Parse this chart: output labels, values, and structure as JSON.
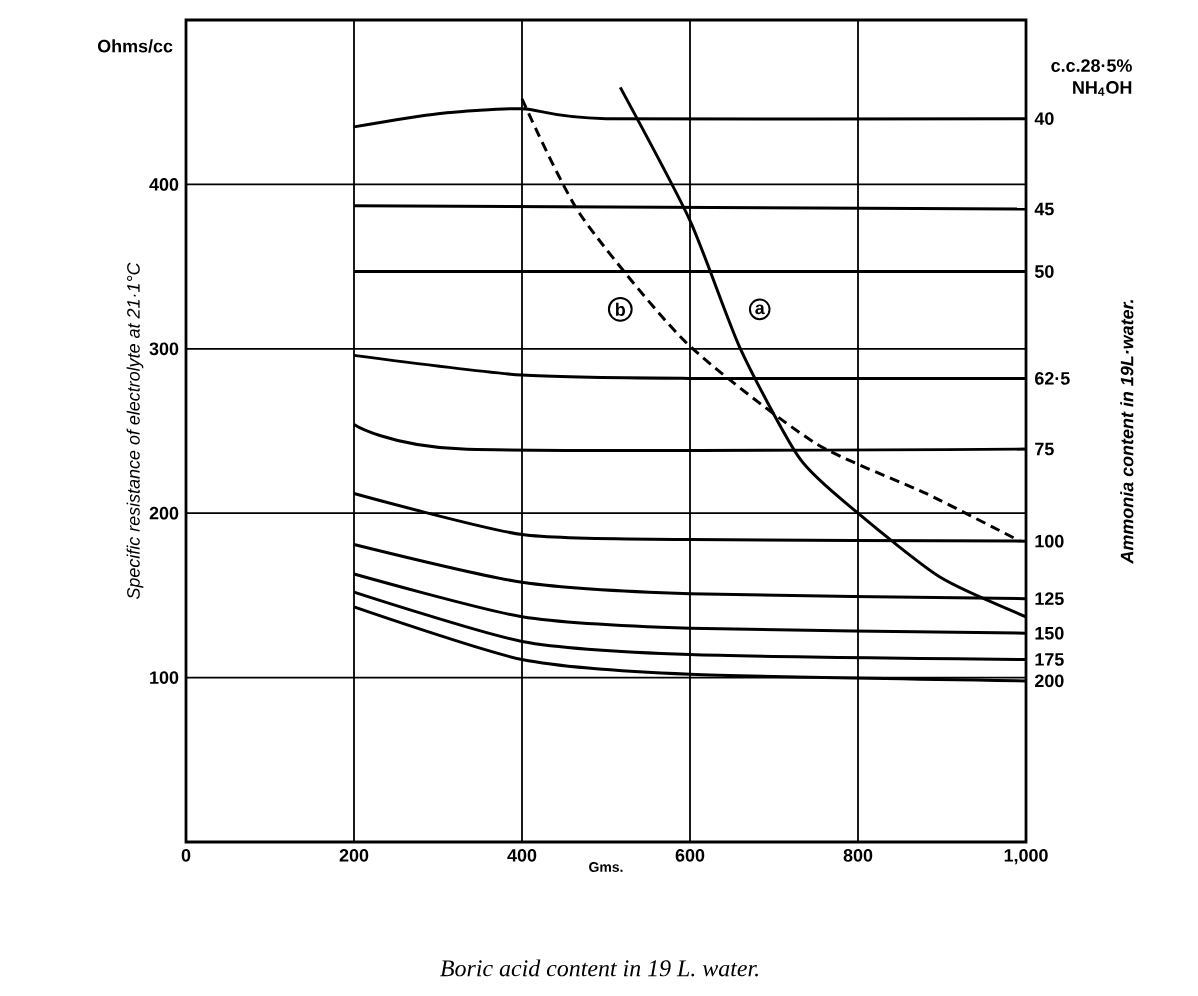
{
  "chart_data": {
    "type": "line",
    "xlabel": "Gms.",
    "ylabel": "Specific resistance of electrolyte at 21·1°C",
    "y2label": "Ammonia content in 19L·water.",
    "legend_title": "c.c.28·5% NH$_{4}$OH",
    "annotations": [
      "Ohms/cc",
      {
        "text": "b",
        "x": 517,
        "y": 324
      },
      {
        "text": "a",
        "x": 683,
        "y": 324
      },
      "Boric acid content in 19 L. water."
    ],
    "xlim": [
      0,
      1000
    ],
    "ylim": [
      0,
      500
    ],
    "xticks": [
      0,
      200,
      400,
      600,
      800,
      {
        "value": 1000,
        "label": "1,000"
      }
    ],
    "yticks": [
      100,
      200,
      300,
      400
    ],
    "grid": true,
    "marker": "none",
    "series": [
      {
        "name": "40",
        "color": "#000000",
        "x": [
          200,
          300,
          400,
          500,
          1000
        ],
        "values": [
          435,
          443,
          446,
          440,
          440
        ]
      },
      {
        "name": "45",
        "color": "#000000",
        "x": [
          200,
          1000
        ],
        "values": [
          387,
          385
        ]
      },
      {
        "name": "50",
        "color": "#000000",
        "x": [
          200,
          1000
        ],
        "values": [
          347,
          347
        ]
      },
      {
        "name": "62·5",
        "color": "#000000",
        "x": [
          200,
          400,
          600,
          1000
        ],
        "values": [
          296,
          284,
          282,
          282
        ]
      },
      {
        "name": "75",
        "color": "#000000",
        "x": [
          200,
          330,
          1000
        ],
        "values": [
          254,
          239,
          239
        ]
      },
      {
        "name": "100",
        "color": "#000000",
        "x": [
          200,
          400,
          600,
          1000
        ],
        "values": [
          212,
          187,
          184,
          183
        ]
      },
      {
        "name": "125",
        "color": "#000000",
        "x": [
          200,
          400,
          600,
          1000
        ],
        "values": [
          181,
          158,
          151,
          148
        ]
      },
      {
        "name": "150",
        "color": "#000000",
        "x": [
          200,
          400,
          600,
          1000
        ],
        "values": [
          163,
          137,
          130,
          127
        ]
      },
      {
        "name": "175",
        "color": "#000000",
        "x": [
          200,
          400,
          600,
          1000
        ],
        "values": [
          152,
          122,
          114,
          111
        ]
      },
      {
        "name": "200",
        "color": "#000000",
        "x": [
          200,
          400,
          600,
          1000
        ],
        "values": [
          143,
          111,
          102,
          98
        ]
      },
      {
        "color": "#000000",
        "line_style": "solid",
        "x": [
          517,
          600,
          660,
          731,
          800,
          898,
          1000
        ],
        "values": [
          459,
          378,
          300,
          233,
          200,
          161,
          137
        ]
      },
      {
        "color": "#000000",
        "line_style": "dashed",
        "x": [
          400,
          469,
          595,
          748,
          881,
          993
        ],
        "values": [
          452,
          382,
          304,
          243,
          212,
          183
        ]
      }
    ]
  }
}
